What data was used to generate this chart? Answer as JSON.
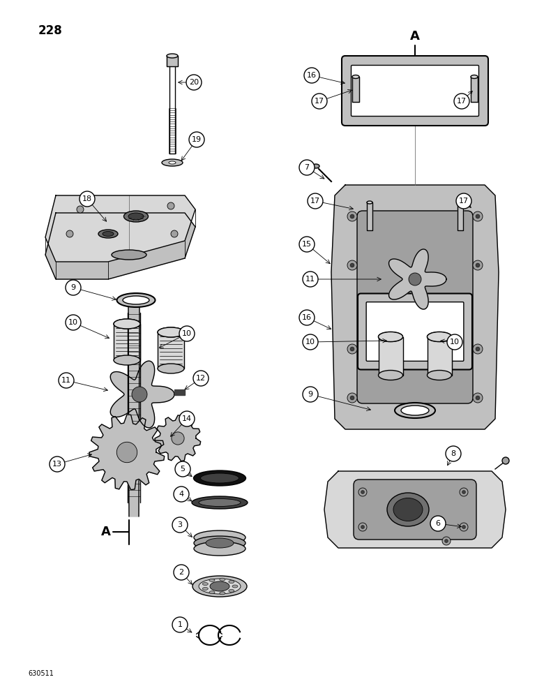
{
  "page_number": "228",
  "part_code": "630511",
  "bg": "#ffffff",
  "lc": "#000000",
  "gray1": "#d8d8d8",
  "gray2": "#c0c0c0",
  "gray3": "#a0a0a0",
  "gray4": "#707070",
  "gray5": "#404040",
  "black": "#111111",
  "lw": 1.0,
  "lw_thick": 1.5,
  "lw_thin": 0.6
}
